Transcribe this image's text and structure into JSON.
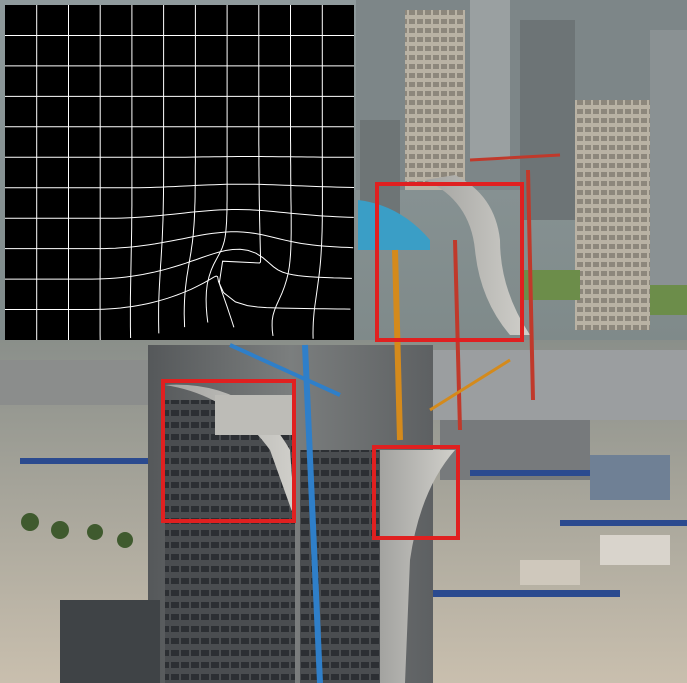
{
  "figure": {
    "panels": [
      {
        "name": "distortion-grid-panel",
        "description_type": "warp-field-visualization"
      },
      {
        "name": "construction-photo-panel",
        "description_type": "aerial-photo"
      }
    ],
    "highlight_color": "#e02020",
    "grid_color": "#ffffff",
    "grid_background": "#000000",
    "highlight_count": 3
  }
}
